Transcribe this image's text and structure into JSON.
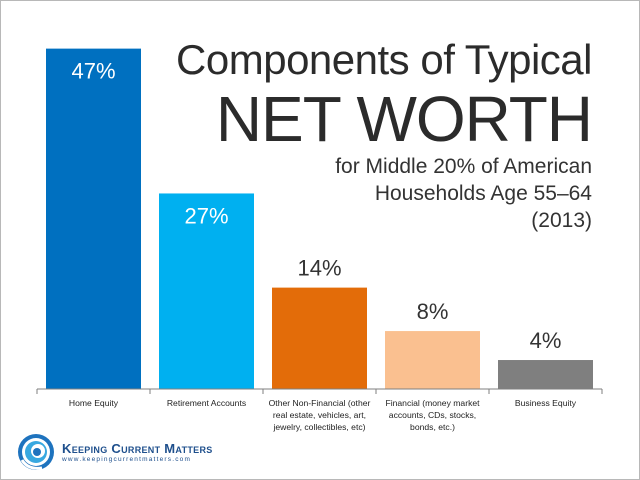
{
  "title": {
    "line1": "Components of Typical",
    "line2": "NET WORTH",
    "subtitle": [
      "for Middle 20% of American",
      "Households Age 55–64",
      "(2013)"
    ]
  },
  "brand": {
    "name": "Keeping Current Matters",
    "url": "www.keepingcurrentmatters.com"
  },
  "chart_data": {
    "type": "bar",
    "categories": [
      [
        "Home Equity"
      ],
      [
        "Retirement Accounts"
      ],
      [
        "Other Non-Financial (other",
        "real estate, vehicles, art,",
        "jewelry, collectibles, etc)"
      ],
      [
        "Financial (money market",
        "accounts, CDs, stocks,",
        "bonds, etc.)"
      ],
      [
        "Business Equity"
      ]
    ],
    "values": [
      47,
      27,
      14,
      8,
      4
    ],
    "value_labels": [
      "47%",
      "27%",
      "14%",
      "8%",
      "4%"
    ],
    "colors": [
      "#0070c0",
      "#00b0f0",
      "#e36c09",
      "#fac090",
      "#7f7f7f"
    ],
    "label_positions": [
      "inside",
      "inside",
      "above",
      "above",
      "above"
    ],
    "ylim": [
      0,
      50
    ],
    "grid": false,
    "legend": "none"
  }
}
